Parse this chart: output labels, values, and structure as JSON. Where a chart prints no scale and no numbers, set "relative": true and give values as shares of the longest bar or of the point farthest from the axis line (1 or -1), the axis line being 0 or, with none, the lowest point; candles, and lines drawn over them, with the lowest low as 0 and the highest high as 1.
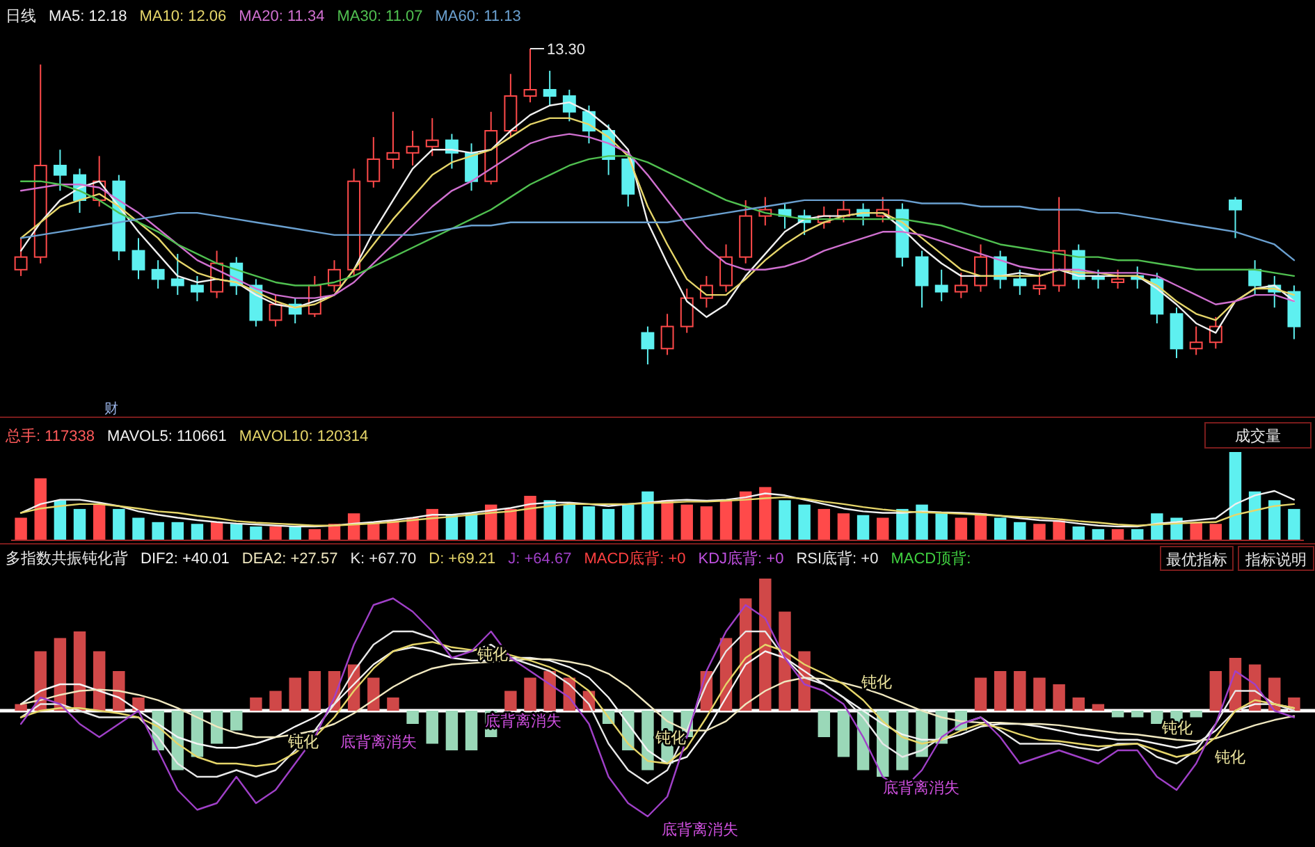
{
  "chart_data": [
    {
      "type": "candlestick",
      "title": "日线",
      "relative": true,
      "categories": [
        null,
        null,
        null,
        null,
        null,
        null,
        null,
        null,
        null,
        null,
        null,
        null,
        null,
        null,
        null,
        null,
        null,
        null,
        null,
        null,
        null,
        null,
        null,
        null,
        null,
        null,
        null,
        null,
        null,
        null,
        null,
        null,
        null,
        null,
        null,
        null,
        null,
        null,
        null,
        null,
        null,
        null,
        null,
        null,
        null,
        null,
        null,
        null,
        null,
        null,
        null,
        null,
        null,
        null,
        null,
        null,
        null,
        null,
        null,
        null,
        null,
        null,
        null,
        null,
        null,
        null
      ],
      "ohlc": [
        [
          0.3,
          0.4,
          0.28,
          0.34
        ],
        [
          0.34,
          0.95,
          0.32,
          0.63
        ],
        [
          0.63,
          0.68,
          0.55,
          0.6
        ],
        [
          0.6,
          0.62,
          0.48,
          0.52
        ],
        [
          0.52,
          0.66,
          0.5,
          0.58
        ],
        [
          0.58,
          0.6,
          0.33,
          0.36
        ],
        [
          0.36,
          0.4,
          0.27,
          0.3
        ],
        [
          0.3,
          0.33,
          0.24,
          0.27
        ],
        [
          0.27,
          0.35,
          0.22,
          0.25
        ],
        [
          0.25,
          0.28,
          0.2,
          0.23
        ],
        [
          0.23,
          0.36,
          0.21,
          0.32
        ],
        [
          0.32,
          0.34,
          0.22,
          0.25
        ],
        [
          0.25,
          0.27,
          0.12,
          0.14
        ],
        [
          0.14,
          0.22,
          0.12,
          0.19
        ],
        [
          0.19,
          0.21,
          0.13,
          0.16
        ],
        [
          0.16,
          0.28,
          0.15,
          0.25
        ],
        [
          0.25,
          0.33,
          0.23,
          0.3
        ],
        [
          0.3,
          0.62,
          0.28,
          0.58
        ],
        [
          0.58,
          0.72,
          0.56,
          0.65
        ],
        [
          0.65,
          0.8,
          0.62,
          0.67
        ],
        [
          0.67,
          0.74,
          0.63,
          0.69
        ],
        [
          0.69,
          0.78,
          0.66,
          0.71
        ],
        [
          0.71,
          0.73,
          0.62,
          0.67
        ],
        [
          0.67,
          0.7,
          0.55,
          0.58
        ],
        [
          0.58,
          0.8,
          0.57,
          0.74
        ],
        [
          0.74,
          0.92,
          0.72,
          0.85
        ],
        [
          0.85,
          1.0,
          0.83,
          0.87
        ],
        [
          0.87,
          0.93,
          0.82,
          0.85
        ],
        [
          0.85,
          0.87,
          0.77,
          0.8
        ],
        [
          0.8,
          0.82,
          0.7,
          0.74
        ],
        [
          0.74,
          0.76,
          0.6,
          0.65
        ],
        [
          0.65,
          0.67,
          0.5,
          0.54
        ],
        [
          0.1,
          0.12,
          0.0,
          0.05
        ],
        [
          0.05,
          0.16,
          0.03,
          0.12
        ],
        [
          0.12,
          0.24,
          0.1,
          0.21
        ],
        [
          0.21,
          0.28,
          0.18,
          0.25
        ],
        [
          0.25,
          0.38,
          0.23,
          0.34
        ],
        [
          0.34,
          0.52,
          0.32,
          0.47
        ],
        [
          0.47,
          0.53,
          0.44,
          0.49
        ],
        [
          0.49,
          0.51,
          0.43,
          0.47
        ],
        [
          0.47,
          0.49,
          0.41,
          0.45
        ],
        [
          0.45,
          0.5,
          0.43,
          0.47
        ],
        [
          0.47,
          0.52,
          0.45,
          0.49
        ],
        [
          0.49,
          0.51,
          0.44,
          0.47
        ],
        [
          0.47,
          0.53,
          0.45,
          0.49
        ],
        [
          0.49,
          0.51,
          0.31,
          0.34
        ],
        [
          0.34,
          0.36,
          0.18,
          0.25
        ],
        [
          0.25,
          0.3,
          0.2,
          0.23
        ],
        [
          0.23,
          0.29,
          0.21,
          0.25
        ],
        [
          0.25,
          0.38,
          0.23,
          0.34
        ],
        [
          0.34,
          0.36,
          0.24,
          0.27
        ],
        [
          0.27,
          0.3,
          0.22,
          0.25
        ],
        [
          0.24,
          0.29,
          0.22,
          0.25
        ],
        [
          0.25,
          0.53,
          0.23,
          0.36
        ],
        [
          0.36,
          0.38,
          0.24,
          0.27
        ],
        [
          0.28,
          0.3,
          0.24,
          0.27
        ],
        [
          0.26,
          0.3,
          0.24,
          0.27
        ],
        [
          0.28,
          0.31,
          0.24,
          0.27
        ],
        [
          0.27,
          0.29,
          0.13,
          0.16
        ],
        [
          0.16,
          0.18,
          0.02,
          0.05
        ],
        [
          0.05,
          0.12,
          0.03,
          0.07
        ],
        [
          0.07,
          0.15,
          0.05,
          0.12
        ],
        [
          0.52,
          0.53,
          0.4,
          0.49
        ],
        [
          0.3,
          0.33,
          0.22,
          0.25
        ],
        [
          0.25,
          0.28,
          0.18,
          0.23
        ],
        [
          0.23,
          0.25,
          0.08,
          0.12
        ]
      ],
      "colors": [
        "#ff4a4a",
        "#ff4a4a",
        "#5ef0f0",
        "#5ef0f0",
        "#ff4a4a",
        "#5ef0f0",
        "#5ef0f0",
        "#5ef0f0",
        "#5ef0f0",
        "#5ef0f0",
        "#ff4a4a",
        "#5ef0f0",
        "#5ef0f0",
        "#ff4a4a",
        "#5ef0f0",
        "#ff4a4a",
        "#ff4a4a",
        "#ff4a4a",
        "#ff4a4a",
        "#ff4a4a",
        "#ff4a4a",
        "#ff4a4a",
        "#5ef0f0",
        "#5ef0f0",
        "#ff4a4a",
        "#ff4a4a",
        "#ff4a4a",
        "#5ef0f0",
        "#5ef0f0",
        "#5ef0f0",
        "#5ef0f0",
        "#5ef0f0",
        "#5ef0f0",
        "#ff4a4a",
        "#ff4a4a",
        "#ff4a4a",
        "#ff4a4a",
        "#ff4a4a",
        "#ff4a4a",
        "#5ef0f0",
        "#5ef0f0",
        "#ff4a4a",
        "#ff4a4a",
        "#5ef0f0",
        "#ff4a4a",
        "#5ef0f0",
        "#5ef0f0",
        "#5ef0f0",
        "#ff4a4a",
        "#ff4a4a",
        "#5ef0f0",
        "#5ef0f0",
        "#ff4a4a",
        "#ff4a4a",
        "#5ef0f0",
        "#5ef0f0",
        "#ff4a4a",
        "#5ef0f0",
        "#5ef0f0",
        "#5ef0f0",
        "#ff4a4a",
        "#ff4a4a",
        "#5ef0f0",
        "#5ef0f0",
        "#5ef0f0",
        "#5ef0f0"
      ],
      "series": [
        {
          "name": "MA5: 12.18",
          "type": "line",
          "color": "#f0f0f0",
          "values": [
            0.36,
            0.45,
            0.52,
            0.56,
            0.58,
            0.5,
            0.42,
            0.35,
            0.28,
            0.26,
            0.27,
            0.26,
            0.22,
            0.19,
            0.18,
            0.2,
            0.22,
            0.3,
            0.42,
            0.52,
            0.62,
            0.68,
            0.68,
            0.67,
            0.68,
            0.74,
            0.79,
            0.82,
            0.83,
            0.8,
            0.75,
            0.68,
            0.45,
            0.32,
            0.2,
            0.15,
            0.19,
            0.28,
            0.35,
            0.42,
            0.46,
            0.47,
            0.47,
            0.48,
            0.48,
            0.43,
            0.37,
            0.32,
            0.28,
            0.28,
            0.28,
            0.29,
            0.28,
            0.3,
            0.28,
            0.28,
            0.28,
            0.28,
            0.24,
            0.19,
            0.13,
            0.1,
            0.2,
            0.24,
            0.25,
            0.2
          ]
        },
        {
          "name": "MA10: 12.06",
          "type": "line",
          "color": "#e6d66a",
          "values": [
            0.4,
            0.45,
            0.5,
            0.52,
            0.54,
            0.5,
            0.45,
            0.4,
            0.33,
            0.29,
            0.27,
            0.26,
            0.23,
            0.2,
            0.18,
            0.19,
            0.22,
            0.3,
            0.38,
            0.46,
            0.53,
            0.6,
            0.64,
            0.66,
            0.68,
            0.72,
            0.76,
            0.78,
            0.78,
            0.76,
            0.72,
            0.66,
            0.5,
            0.38,
            0.27,
            0.22,
            0.22,
            0.27,
            0.33,
            0.38,
            0.42,
            0.45,
            0.47,
            0.48,
            0.48,
            0.45,
            0.4,
            0.35,
            0.3,
            0.28,
            0.28,
            0.28,
            0.28,
            0.3,
            0.29,
            0.29,
            0.28,
            0.28,
            0.25,
            0.2,
            0.16,
            0.14,
            0.2,
            0.24,
            0.24,
            0.22
          ]
        },
        {
          "name": "MA20: 11.34",
          "type": "line",
          "color": "#d070d0",
          "values": [
            0.55,
            0.56,
            0.57,
            0.57,
            0.56,
            0.52,
            0.48,
            0.43,
            0.38,
            0.33,
            0.3,
            0.27,
            0.24,
            0.22,
            0.21,
            0.21,
            0.22,
            0.26,
            0.32,
            0.38,
            0.44,
            0.5,
            0.55,
            0.58,
            0.62,
            0.66,
            0.7,
            0.72,
            0.73,
            0.72,
            0.7,
            0.67,
            0.6,
            0.52,
            0.44,
            0.37,
            0.32,
            0.3,
            0.3,
            0.31,
            0.33,
            0.36,
            0.38,
            0.4,
            0.42,
            0.42,
            0.41,
            0.39,
            0.37,
            0.35,
            0.33,
            0.31,
            0.3,
            0.3,
            0.3,
            0.29,
            0.29,
            0.29,
            0.28,
            0.25,
            0.22,
            0.19,
            0.2,
            0.22,
            0.22,
            0.2
          ]
        },
        {
          "name": "MA30: 11.07",
          "type": "line",
          "color": "#50c050",
          "values": [
            0.58,
            0.58,
            0.57,
            0.55,
            0.52,
            0.48,
            0.45,
            0.42,
            0.38,
            0.35,
            0.32,
            0.3,
            0.28,
            0.26,
            0.25,
            0.25,
            0.26,
            0.28,
            0.31,
            0.34,
            0.37,
            0.4,
            0.43,
            0.46,
            0.49,
            0.53,
            0.57,
            0.6,
            0.63,
            0.65,
            0.66,
            0.66,
            0.64,
            0.61,
            0.58,
            0.55,
            0.52,
            0.5,
            0.48,
            0.47,
            0.46,
            0.46,
            0.46,
            0.46,
            0.46,
            0.46,
            0.45,
            0.44,
            0.42,
            0.4,
            0.38,
            0.37,
            0.36,
            0.35,
            0.34,
            0.34,
            0.33,
            0.33,
            0.32,
            0.31,
            0.3,
            0.3,
            0.3,
            0.3,
            0.29,
            0.28
          ]
        },
        {
          "name": "MA60: 11.13",
          "type": "line",
          "color": "#6aa0d0",
          "values": [
            0.4,
            0.41,
            0.42,
            0.43,
            0.44,
            0.45,
            0.46,
            0.47,
            0.48,
            0.48,
            0.47,
            0.46,
            0.45,
            0.44,
            0.43,
            0.42,
            0.41,
            0.41,
            0.41,
            0.41,
            0.41,
            0.42,
            0.43,
            0.44,
            0.44,
            0.45,
            0.45,
            0.45,
            0.45,
            0.45,
            0.45,
            0.45,
            0.45,
            0.45,
            0.46,
            0.47,
            0.48,
            0.49,
            0.5,
            0.51,
            0.52,
            0.52,
            0.52,
            0.52,
            0.52,
            0.52,
            0.51,
            0.51,
            0.51,
            0.5,
            0.5,
            0.5,
            0.49,
            0.49,
            0.49,
            0.48,
            0.48,
            0.47,
            0.46,
            0.45,
            0.44,
            0.43,
            0.42,
            0.4,
            0.38,
            0.33
          ]
        }
      ],
      "annotations": [
        "13.30",
        "财"
      ]
    },
    {
      "type": "bar",
      "title": "总手: 117338",
      "relative": true,
      "categories": [
        null,
        null,
        null,
        null,
        null,
        null,
        null,
        null,
        null,
        null,
        null,
        null,
        null,
        null,
        null,
        null,
        null,
        null,
        null,
        null,
        null,
        null,
        null,
        null,
        null,
        null,
        null,
        null,
        null,
        null,
        null,
        null,
        null,
        null,
        null,
        null,
        null,
        null,
        null,
        null,
        null,
        null,
        null,
        null,
        null,
        null,
        null,
        null,
        null,
        null,
        null,
        null,
        null,
        null,
        null,
        null,
        null,
        null,
        null,
        null,
        null,
        null,
        null,
        null,
        null,
        null
      ],
      "series": [
        {
          "type": "bar",
          "colors": [
            "#ff4a4a",
            "#ff4a4a",
            "#5ef0f0",
            "#5ef0f0",
            "#ff4a4a",
            "#5ef0f0",
            "#5ef0f0",
            "#5ef0f0",
            "#5ef0f0",
            "#5ef0f0",
            "#ff4a4a",
            "#5ef0f0",
            "#5ef0f0",
            "#ff4a4a",
            "#5ef0f0",
            "#ff4a4a",
            "#ff4a4a",
            "#ff4a4a",
            "#ff4a4a",
            "#ff4a4a",
            "#ff4a4a",
            "#ff4a4a",
            "#5ef0f0",
            "#5ef0f0",
            "#ff4a4a",
            "#ff4a4a",
            "#ff4a4a",
            "#5ef0f0",
            "#5ef0f0",
            "#5ef0f0",
            "#5ef0f0",
            "#5ef0f0",
            "#5ef0f0",
            "#ff4a4a",
            "#ff4a4a",
            "#ff4a4a",
            "#ff4a4a",
            "#ff4a4a",
            "#ff4a4a",
            "#5ef0f0",
            "#5ef0f0",
            "#ff4a4a",
            "#ff4a4a",
            "#5ef0f0",
            "#ff4a4a",
            "#5ef0f0",
            "#5ef0f0",
            "#5ef0f0",
            "#ff4a4a",
            "#ff4a4a",
            "#5ef0f0",
            "#5ef0f0",
            "#ff4a4a",
            "#ff4a4a",
            "#5ef0f0",
            "#5ef0f0",
            "#ff4a4a",
            "#5ef0f0",
            "#5ef0f0",
            "#5ef0f0",
            "#ff4a4a",
            "#ff4a4a",
            "#5ef0f0",
            "#5ef0f0",
            "#5ef0f0",
            "#5ef0f0"
          ],
          "values": [
            0.25,
            0.7,
            0.45,
            0.35,
            0.4,
            0.35,
            0.25,
            0.2,
            0.2,
            0.18,
            0.2,
            0.18,
            0.15,
            0.15,
            0.15,
            0.12,
            0.18,
            0.3,
            0.2,
            0.22,
            0.25,
            0.35,
            0.28,
            0.3,
            0.4,
            0.35,
            0.5,
            0.45,
            0.4,
            0.38,
            0.35,
            0.4,
            0.55,
            0.45,
            0.4,
            0.38,
            0.45,
            0.55,
            0.6,
            0.45,
            0.4,
            0.35,
            0.3,
            0.28,
            0.25,
            0.35,
            0.4,
            0.3,
            0.25,
            0.3,
            0.25,
            0.2,
            0.18,
            0.22,
            0.15,
            0.12,
            0.12,
            0.12,
            0.3,
            0.25,
            0.2,
            0.18,
            1.0,
            0.55,
            0.45,
            0.35
          ]
        }
      ],
      "annotations": [
        "成交量"
      ]
    },
    {
      "type": "line",
      "relative": true,
      "categories": [
        null,
        null,
        null,
        null,
        null,
        null,
        null,
        null,
        null,
        null,
        null,
        null,
        null,
        null,
        null,
        null,
        null,
        null,
        null,
        null,
        null,
        null,
        null,
        null,
        null,
        null,
        null,
        null,
        null,
        null,
        null,
        null,
        null,
        null,
        null,
        null,
        null,
        null,
        null,
        null,
        null,
        null,
        null,
        null,
        null,
        null,
        null,
        null,
        null,
        null,
        null,
        null,
        null,
        null,
        null,
        null,
        null,
        null,
        null,
        null,
        null,
        null,
        null,
        null,
        null,
        null
      ],
      "series": [
        {
          "name": "MAVOL5: 110661",
          "color": "#f0f0f0",
          "values": [
            0.55,
            0.73,
            0.82,
            0.82,
            0.76,
            0.69,
            0.58,
            0.51,
            0.45,
            0.4,
            0.36,
            0.33,
            0.31,
            0.29,
            0.27,
            0.27,
            0.29,
            0.33,
            0.36,
            0.4,
            0.45,
            0.51,
            0.51,
            0.55,
            0.6,
            0.65,
            0.73,
            0.76,
            0.76,
            0.73,
            0.69,
            0.73,
            0.76,
            0.8,
            0.82,
            0.8,
            0.82,
            0.87,
            0.95,
            0.91,
            0.82,
            0.73,
            0.64,
            0.58,
            0.55,
            0.55,
            0.58,
            0.56,
            0.55,
            0.53,
            0.49,
            0.44,
            0.4,
            0.38,
            0.33,
            0.29,
            0.27,
            0.27,
            0.33,
            0.36,
            0.4,
            0.44,
            0.73,
            0.91,
            1.0,
            0.82
          ]
        },
        {
          "name": "MAVOL10: 120314",
          "color": "#e6d66a",
          "values": [
            0.55,
            0.64,
            0.69,
            0.73,
            0.73,
            0.69,
            0.64,
            0.58,
            0.55,
            0.49,
            0.44,
            0.38,
            0.35,
            0.33,
            0.31,
            0.29,
            0.29,
            0.31,
            0.33,
            0.36,
            0.4,
            0.44,
            0.47,
            0.51,
            0.55,
            0.58,
            0.64,
            0.69,
            0.73,
            0.73,
            0.73,
            0.73,
            0.75,
            0.76,
            0.78,
            0.78,
            0.8,
            0.82,
            0.85,
            0.87,
            0.84,
            0.78,
            0.73,
            0.67,
            0.62,
            0.58,
            0.56,
            0.55,
            0.53,
            0.51,
            0.49,
            0.47,
            0.45,
            0.42,
            0.38,
            0.35,
            0.31,
            0.29,
            0.31,
            0.33,
            0.35,
            0.36,
            0.51,
            0.6,
            0.69,
            0.73
          ]
        }
      ]
    },
    {
      "type": "bar",
      "title": "多指数共振钝化背",
      "relative": true,
      "categories": [
        null,
        null,
        null,
        null,
        null,
        null,
        null,
        null,
        null,
        null,
        null,
        null,
        null,
        null,
        null,
        null,
        null,
        null,
        null,
        null,
        null,
        null,
        null,
        null,
        null,
        null,
        null,
        null,
        null,
        null,
        null,
        null,
        null,
        null,
        null,
        null,
        null,
        null,
        null,
        null,
        null,
        null,
        null,
        null,
        null,
        null,
        null,
        null,
        null,
        null,
        null,
        null,
        null,
        null,
        null,
        null,
        null,
        null,
        null,
        null,
        null,
        null,
        null,
        null,
        null,
        null
      ],
      "series": [
        {
          "type": "bar",
          "colors": [
            "#d04848",
            "#d04848",
            "#d04848",
            "#d04848",
            "#d04848",
            "#d04848",
            "#d04848",
            "#9ad8b8",
            "#9ad8b8",
            "#9ad8b8",
            "#9ad8b8",
            "#9ad8b8",
            "#d04848",
            "#d04848",
            "#d04848",
            "#d04848",
            "#d04848",
            "#d04848",
            "#d04848",
            "#d04848",
            "#9ad8b8",
            "#9ad8b8",
            "#9ad8b8",
            "#9ad8b8",
            "#9ad8b8",
            "#d04848",
            "#d04848",
            "#d04848",
            "#d04848",
            "#d04848",
            "#9ad8b8",
            "#9ad8b8",
            "#9ad8b8",
            "#9ad8b8",
            "#9ad8b8",
            "#d04848",
            "#d04848",
            "#d04848",
            "#d04848",
            "#d04848",
            "#d04848",
            "#9ad8b8",
            "#9ad8b8",
            "#9ad8b8",
            "#9ad8b8",
            "#9ad8b8",
            "#9ad8b8",
            "#9ad8b8",
            "#9ad8b8",
            "#d04848",
            "#d04848",
            "#d04848",
            "#d04848",
            "#d04848",
            "#d04848",
            "#d04848",
            "#9ad8b8",
            "#9ad8b8",
            "#9ad8b8",
            "#9ad8b8",
            "#9ad8b8",
            "#d04848",
            "#d04848",
            "#d04848",
            "#d04848",
            "#d04848"
          ],
          "values": [
            0.05,
            0.45,
            0.55,
            0.6,
            0.45,
            0.3,
            0.1,
            -0.3,
            -0.45,
            -0.35,
            -0.25,
            -0.15,
            0.1,
            0.15,
            0.25,
            0.3,
            0.3,
            0.35,
            0.25,
            0.1,
            -0.1,
            -0.25,
            -0.3,
            -0.3,
            -0.2,
            0.15,
            0.25,
            0.3,
            0.25,
            0.15,
            -0.1,
            -0.3,
            -0.45,
            -0.4,
            -0.2,
            0.3,
            0.55,
            0.85,
            1.0,
            0.75,
            0.45,
            -0.2,
            -0.35,
            -0.45,
            -0.5,
            -0.45,
            -0.35,
            -0.25,
            -0.15,
            0.25,
            0.3,
            0.3,
            0.25,
            0.2,
            0.1,
            0.05,
            -0.05,
            -0.05,
            -0.1,
            -0.1,
            -0.05,
            0.3,
            0.4,
            0.35,
            0.25,
            0.1
          ]
        },
        {
          "name": "DIF2: +40.01",
          "type": "line",
          "color": "#f4f4f4",
          "values": [
            0.05,
            0.15,
            0.2,
            0.2,
            0.15,
            0.1,
            0.0,
            -0.1,
            -0.2,
            -0.25,
            -0.28,
            -0.28,
            -0.25,
            -0.2,
            -0.12,
            -0.05,
            0.05,
            0.2,
            0.35,
            0.45,
            0.48,
            0.45,
            0.4,
            0.38,
            0.38,
            0.4,
            0.4,
            0.38,
            0.33,
            0.25,
            0.1,
            -0.1,
            -0.3,
            -0.4,
            -0.35,
            -0.15,
            0.1,
            0.35,
            0.45,
            0.4,
            0.3,
            0.2,
            0.1,
            0.0,
            -0.1,
            -0.18,
            -0.22,
            -0.22,
            -0.18,
            -0.12,
            -0.1,
            -0.1,
            -0.12,
            -0.15,
            -0.18,
            -0.2,
            -0.22,
            -0.22,
            -0.25,
            -0.28,
            -0.25,
            -0.15,
            0.0,
            0.05,
            0.05,
            0.02
          ]
        },
        {
          "name": "DEA2: +27.57",
          "type": "line",
          "color": "#f0e8c0",
          "values": [
            0.05,
            0.08,
            0.12,
            0.15,
            0.16,
            0.15,
            0.12,
            0.08,
            0.02,
            -0.05,
            -0.12,
            -0.17,
            -0.2,
            -0.2,
            -0.18,
            -0.15,
            -0.1,
            -0.02,
            0.08,
            0.18,
            0.26,
            0.32,
            0.35,
            0.36,
            0.37,
            0.38,
            0.39,
            0.39,
            0.37,
            0.34,
            0.28,
            0.18,
            0.05,
            -0.08,
            -0.15,
            -0.15,
            -0.08,
            0.05,
            0.15,
            0.22,
            0.25,
            0.24,
            0.21,
            0.17,
            0.12,
            0.06,
            0.0,
            -0.05,
            -0.08,
            -0.09,
            -0.09,
            -0.1,
            -0.1,
            -0.11,
            -0.13,
            -0.15,
            -0.17,
            -0.18,
            -0.2,
            -0.22,
            -0.23,
            -0.21,
            -0.16,
            -0.11,
            -0.07,
            -0.04
          ]
        },
        {
          "name": "K: +67.70",
          "type": "line",
          "color": "#e8e8e8",
          "values": [
            -0.05,
            0.05,
            0.05,
            0.0,
            -0.05,
            -0.05,
            -0.05,
            -0.2,
            -0.4,
            -0.5,
            -0.5,
            -0.45,
            -0.5,
            -0.45,
            -0.3,
            -0.15,
            0.05,
            0.3,
            0.5,
            0.6,
            0.6,
            0.55,
            0.45,
            0.45,
            0.5,
            0.4,
            0.35,
            0.3,
            0.2,
            0.05,
            -0.25,
            -0.45,
            -0.55,
            -0.45,
            -0.15,
            0.2,
            0.45,
            0.6,
            0.6,
            0.4,
            0.25,
            0.2,
            0.1,
            -0.05,
            -0.25,
            -0.35,
            -0.3,
            -0.2,
            -0.1,
            -0.05,
            -0.15,
            -0.25,
            -0.25,
            -0.25,
            -0.28,
            -0.3,
            -0.25,
            -0.25,
            -0.35,
            -0.4,
            -0.3,
            -0.1,
            0.15,
            0.15,
            0.05,
            0.0
          ]
        },
        {
          "name": "D: +69.21",
          "type": "line",
          "color": "#e6d66a",
          "values": [
            -0.05,
            0.0,
            0.02,
            0.02,
            0.0,
            -0.02,
            -0.05,
            -0.12,
            -0.25,
            -0.35,
            -0.4,
            -0.4,
            -0.42,
            -0.4,
            -0.32,
            -0.2,
            -0.05,
            0.15,
            0.32,
            0.45,
            0.5,
            0.52,
            0.48,
            0.46,
            0.46,
            0.42,
            0.38,
            0.33,
            0.26,
            0.15,
            -0.05,
            -0.25,
            -0.38,
            -0.4,
            -0.28,
            -0.05,
            0.2,
            0.4,
            0.5,
            0.45,
            0.35,
            0.28,
            0.2,
            0.08,
            -0.08,
            -0.2,
            -0.25,
            -0.22,
            -0.15,
            -0.1,
            -0.13,
            -0.18,
            -0.22,
            -0.23,
            -0.25,
            -0.27,
            -0.26,
            -0.25,
            -0.3,
            -0.35,
            -0.32,
            -0.2,
            0.0,
            0.08,
            0.05,
            0.02
          ]
        },
        {
          "name": "J: +64.67",
          "type": "line",
          "color": "#a040c8",
          "values": [
            -0.1,
            0.1,
            0.05,
            -0.1,
            -0.2,
            -0.1,
            0.0,
            -0.3,
            -0.6,
            -0.75,
            -0.7,
            -0.5,
            -0.7,
            -0.6,
            -0.4,
            -0.2,
            0.1,
            0.5,
            0.8,
            0.85,
            0.75,
            0.6,
            0.4,
            0.45,
            0.6,
            0.4,
            0.3,
            0.2,
            0.1,
            -0.1,
            -0.5,
            -0.7,
            -0.8,
            -0.65,
            -0.2,
            0.3,
            0.6,
            0.8,
            0.7,
            0.4,
            0.2,
            0.15,
            0.05,
            -0.2,
            -0.5,
            -0.6,
            -0.45,
            -0.2,
            -0.1,
            -0.05,
            -0.2,
            -0.4,
            -0.35,
            -0.3,
            -0.35,
            -0.4,
            -0.3,
            -0.3,
            -0.5,
            -0.6,
            -0.4,
            -0.1,
            0.3,
            0.2,
            0.0,
            -0.05
          ]
        }
      ],
      "annotations": [
        "MACD底背: +0",
        "KDJ底背: +0",
        "RSI底背: +0",
        "MACD顶背:",
        "钝化",
        "钝化",
        "钝化",
        "钝化",
        "钝化",
        "钝化",
        "底背离消失",
        "底背离消失",
        "底背离消失",
        "底背离消失",
        "最优指标",
        "指标说明"
      ]
    }
  ]
}
